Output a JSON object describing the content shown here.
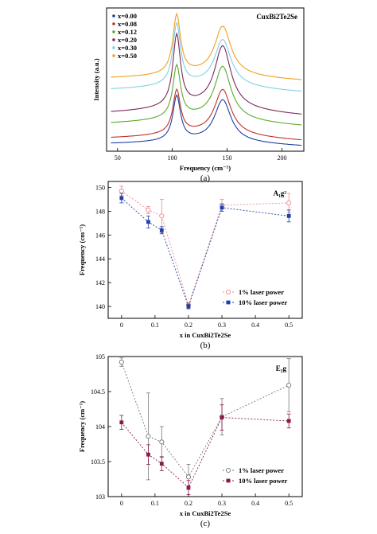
{
  "chart_data": [
    {
      "type": "line",
      "panel_label": "(a)",
      "annotation": "CuxBi2Te2Se",
      "xlabel": "Frequency (cm⁻¹)",
      "ylabel": "Intensity (a.u.)",
      "xlim": [
        40,
        220
      ],
      "xticks": [
        "50",
        "100",
        "150",
        "200"
      ],
      "legend_position": "top-left",
      "series": [
        {
          "name": "x=0.00",
          "color": "#1f3fa8"
        },
        {
          "name": "x=0.08",
          "color": "#c0302a"
        },
        {
          "name": "x=0.12",
          "color": "#5aaa2a"
        },
        {
          "name": "x=0.20",
          "color": "#7a2a5a"
        },
        {
          "name": "x=0.30",
          "color": "#7fd0e8"
        },
        {
          "name": "x=0.50",
          "color": "#f0a020"
        }
      ]
    },
    {
      "type": "line",
      "panel_label": "(b)",
      "annotation": "A₁g²",
      "xlabel": "x  in  CuxBi2Te2Se",
      "ylabel": "Frequency (cm⁻¹)",
      "x": [
        0,
        0.08,
        0.12,
        0.2,
        0.3,
        0.5
      ],
      "xlim": [
        -0.04,
        0.54
      ],
      "ylim": [
        139,
        150.5
      ],
      "xticks": [
        "0",
        "0.1",
        "0.2",
        "0.3",
        "0.4",
        "0.5"
      ],
      "yticks": [
        "140",
        "142",
        "144",
        "146",
        "148",
        "150"
      ],
      "legend_position": "bottom-right",
      "series": [
        {
          "name": "1% laser power",
          "color": "#f08a8a",
          "marker": "circle-open",
          "values": [
            149.7,
            148.1,
            147.6,
            140.1,
            148.5,
            148.7
          ],
          "errors": [
            0.4,
            0.3,
            1.4,
            0.2,
            0.5,
            0.8
          ]
        },
        {
          "name": "10% laser power",
          "color": "#1f3fa8",
          "marker": "square-filled",
          "values": [
            149.1,
            147.1,
            146.4,
            140.0,
            148.3,
            147.6
          ],
          "errors": [
            0.4,
            0.5,
            0.3,
            0.2,
            0.3,
            0.5
          ]
        }
      ]
    },
    {
      "type": "line",
      "panel_label": "(c)",
      "annotation": "E₂g",
      "xlabel": "x  in  CuxBi2Te2Se",
      "ylabel": "Frequency (cm⁻¹)",
      "x": [
        0,
        0.08,
        0.12,
        0.2,
        0.3,
        0.5
      ],
      "xlim": [
        -0.04,
        0.54
      ],
      "ylim": [
        103,
        105
      ],
      "xticks": [
        "0",
        "0.1",
        "0.2",
        "0.3",
        "0.4",
        "0.5"
      ],
      "yticks": [
        "103",
        "103.5",
        "104",
        "104.5",
        "105"
      ],
      "legend_position": "bottom-right",
      "series": [
        {
          "name": "1% laser power",
          "color": "#777777",
          "marker": "circle-open",
          "values": [
            104.92,
            103.86,
            103.78,
            103.28,
            104.14,
            104.59
          ],
          "errors": [
            0.06,
            0.62,
            0.22,
            0.18,
            0.26,
            0.38
          ]
        },
        {
          "name": "10% laser power",
          "color": "#8a1a4a",
          "marker": "square-filled",
          "values": [
            104.06,
            103.6,
            103.47,
            103.13,
            104.13,
            104.08
          ],
          "errors": [
            0.1,
            0.14,
            0.1,
            0.1,
            0.18,
            0.1
          ]
        }
      ]
    }
  ]
}
